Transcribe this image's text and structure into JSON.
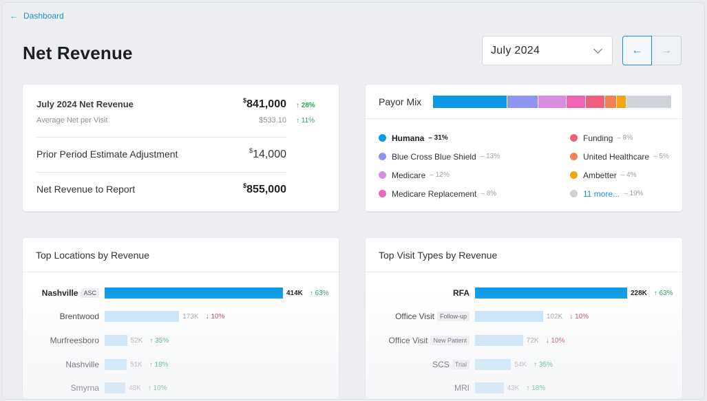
{
  "nav": {
    "back_label": "Dashboard",
    "back_icon": "arrow-left-icon"
  },
  "page": {
    "title": "Net Revenue"
  },
  "period": {
    "selected": "July  2024",
    "prev_icon": "arrow-left-icon",
    "next_icon": "arrow-right-icon"
  },
  "revenue": {
    "net": {
      "label": "July 2024 Net Revenue",
      "currency": "$",
      "amount": "841,000",
      "change": "↑ 28%"
    },
    "avg": {
      "label": "Average Net per Visit",
      "amount": "$533.10",
      "change": "↑ 11%"
    },
    "adjust": {
      "label": "Prior Period Estimate Adjustment",
      "currency": "$",
      "amount": "14,000"
    },
    "report": {
      "label": "Net Revenue to Report",
      "currency": "$",
      "amount": "855,000"
    }
  },
  "payor_mix": {
    "label": "Payor Mix",
    "segments": [
      {
        "share": 31,
        "color": "#0e99e6"
      },
      {
        "share": 13,
        "color": "#8f95ef"
      },
      {
        "share": 12,
        "color": "#d98de2"
      },
      {
        "share": 8,
        "color": "#ef64b3"
      },
      {
        "share": 8,
        "color": "#f0607c"
      },
      {
        "share": 5,
        "color": "#f18052"
      },
      {
        "share": 4,
        "color": "#f5a30f"
      },
      {
        "share": 19,
        "color": "#cfd3da"
      }
    ],
    "legend_left": [
      {
        "name": "Humana",
        "pct": "– 31%",
        "color": "#0e99e6",
        "bold": true
      },
      {
        "name": "Blue Cross Blue Shield",
        "pct": "– 13%",
        "color": "#8f95ef"
      },
      {
        "name": "Medicare",
        "pct": "– 12%",
        "color": "#d98de2"
      },
      {
        "name": "Medicare Replacement",
        "pct": "– 8%",
        "color": "#ef64b3"
      }
    ],
    "legend_right": [
      {
        "name": "Funding",
        "pct": "– 8%",
        "color": "#f0607c"
      },
      {
        "name": "United Healthcare",
        "pct": "– 5%",
        "color": "#f18052"
      },
      {
        "name": "Ambetter",
        "pct": "– 4%",
        "color": "#f5a30f"
      },
      {
        "name": "11 more...",
        "pct": "– 19%",
        "color": "#cfd3da",
        "link": true
      }
    ]
  },
  "locations": {
    "title": "Top Locations by Revenue",
    "max": 414,
    "rows": [
      {
        "name": "Nashville",
        "tag": "ASC",
        "value": 414,
        "value_label": "414K",
        "change": "↑ 63%",
        "dir": "up",
        "top": true
      },
      {
        "name": "Brentwood",
        "tag": "",
        "value": 173,
        "value_label": "173K",
        "change": "↓ 10%",
        "dir": "down"
      },
      {
        "name": "Murfreesboro",
        "tag": "",
        "value": 52,
        "value_label": "52K",
        "change": "↑ 35%",
        "dir": "up"
      },
      {
        "name": "Nashville",
        "tag": "",
        "value": 51,
        "value_label": "51K",
        "change": "↑ 18%",
        "dir": "up"
      },
      {
        "name": "Smyrna",
        "tag": "",
        "value": 48,
        "value_label": "48K",
        "change": "↑ 10%",
        "dir": "up"
      }
    ]
  },
  "visit_types": {
    "title": "Top Visit Types by Revenue",
    "max": 228,
    "rows": [
      {
        "name": "RFA",
        "tag": "",
        "value": 228,
        "value_label": "228K",
        "change": "↑ 63%",
        "dir": "up",
        "top": true
      },
      {
        "name": "Office Visit",
        "tag": "Follow-up",
        "value": 102,
        "value_label": "102K",
        "change": "↓ 10%",
        "dir": "down"
      },
      {
        "name": "Office Visit",
        "tag": "New Patient",
        "value": 72,
        "value_label": "72K",
        "change": "↓ 10%",
        "dir": "down"
      },
      {
        "name": "SCS",
        "tag": "Trial",
        "value": 54,
        "value_label": "54K",
        "change": "↑ 35%",
        "dir": "up"
      },
      {
        "name": "MRI",
        "tag": "",
        "value": 43,
        "value_label": "43K",
        "change": "↑ 18%",
        "dir": "up"
      }
    ]
  },
  "colors": {
    "accent": "#1b8fd6",
    "bar_primary": "#0e99e6",
    "bar_light": "#c6e4f8",
    "up": "#2aa55f",
    "down": "#c7335a"
  }
}
